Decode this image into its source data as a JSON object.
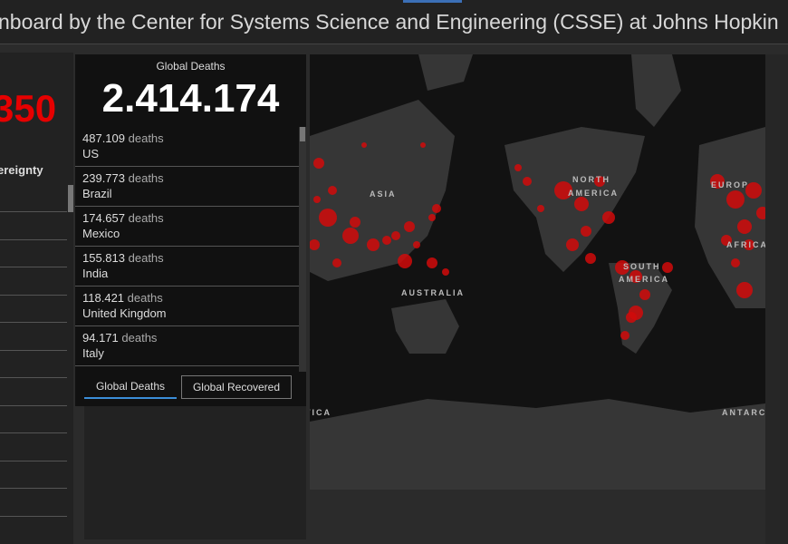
{
  "header": {
    "title": "nboard by the Center for Systems Science and Engineering (CSSE) at Johns Hopkin"
  },
  "left_panel": {
    "value": "350",
    "heading": "ereignty"
  },
  "deaths_panel": {
    "title": "Global Deaths",
    "total": "2.414.174",
    "rows": [
      {
        "value": "487.109",
        "unit": "deaths",
        "country": "US"
      },
      {
        "value": "239.773",
        "unit": "deaths",
        "country": "Brazil"
      },
      {
        "value": "174.657",
        "unit": "deaths",
        "country": "Mexico"
      },
      {
        "value": "155.813",
        "unit": "deaths",
        "country": "India"
      },
      {
        "value": "118.421",
        "unit": "deaths",
        "country": "United Kingdom"
      },
      {
        "value": "94.171",
        "unit": "deaths",
        "country": "Italy"
      }
    ]
  },
  "tabs": [
    "Global Deaths",
    "Global Recovered"
  ],
  "map": {
    "labels": [
      "ASIA",
      "NORTH",
      "AMERICA",
      "SOUTH",
      "AMERICA",
      "AUSTRALIA",
      "EUROP",
      "AFRICA",
      "TICA",
      "ANTARC"
    ]
  }
}
